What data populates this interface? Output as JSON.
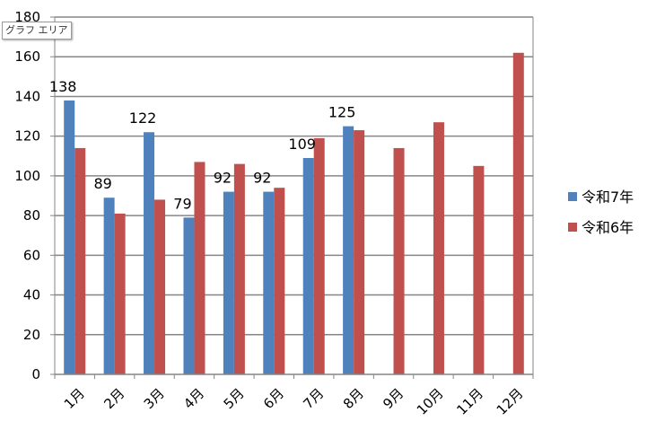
{
  "tooltip": "グラフ エリア",
  "colors": {
    "series1": "#4f81bd",
    "series2": "#c0504d",
    "grid": "#868686",
    "axis": "#868686"
  },
  "chart_data": {
    "type": "bar",
    "title": "",
    "xlabel": "",
    "ylabel": "",
    "ylim": [
      0,
      180
    ],
    "yticks": [
      0,
      20,
      40,
      60,
      80,
      100,
      120,
      140,
      160,
      180
    ],
    "grid": true,
    "legend_position": "right",
    "categories": [
      "1月",
      "2月",
      "3月",
      "4月",
      "5月",
      "6月",
      "7月",
      "8月",
      "9月",
      "10月",
      "11月",
      "12月"
    ],
    "series": [
      {
        "name": "令和7年",
        "color": "#4f81bd",
        "values": [
          138,
          89,
          122,
          79,
          92,
          92,
          109,
          125,
          null,
          null,
          null,
          null
        ],
        "data_labels": [
          "138",
          "89",
          "122",
          "79",
          "92",
          "92",
          "109",
          "125"
        ]
      },
      {
        "name": "令和6年",
        "color": "#c0504d",
        "values": [
          114,
          81,
          88,
          107,
          106,
          94,
          119,
          123,
          114,
          127,
          105,
          162
        ]
      }
    ]
  }
}
